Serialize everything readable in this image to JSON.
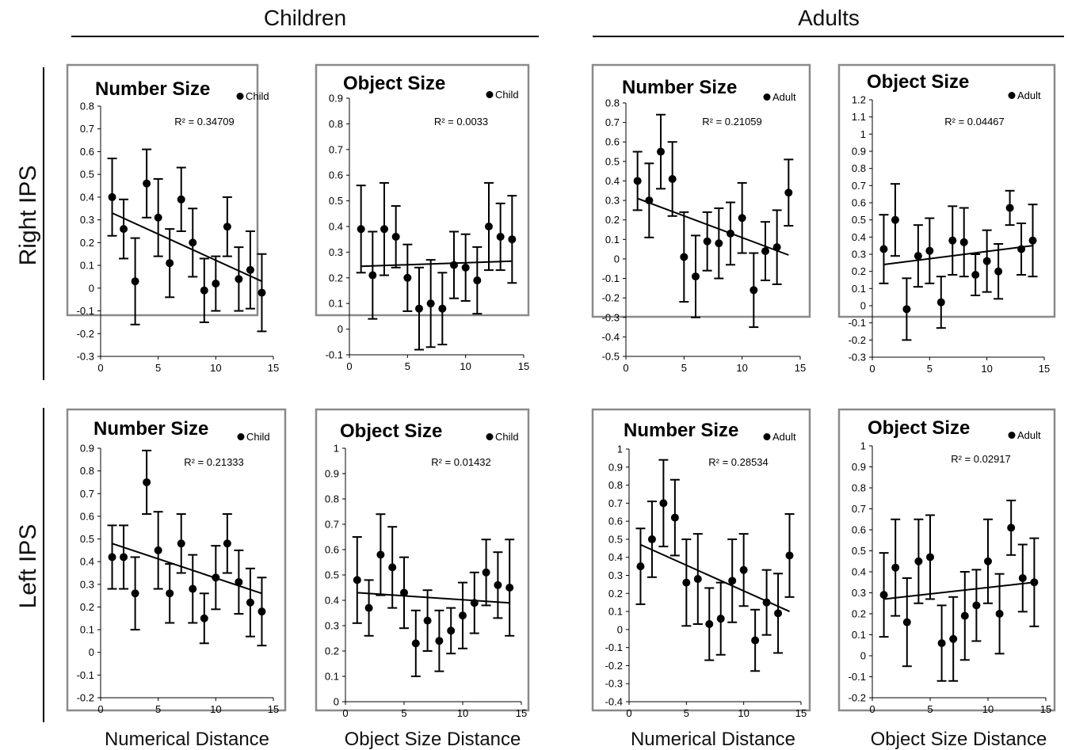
{
  "figure": {
    "groups": [
      "Children",
      "Adults"
    ],
    "rows": [
      "Right IPS",
      "Left IPS"
    ],
    "x_labels": [
      "Numerical Distance",
      "Object Size Distance",
      "Numerical Distance",
      "Object Size Distance"
    ]
  },
  "chart_data": [
    {
      "id": "rc-num",
      "type": "scatter",
      "title": "Number Size",
      "legend": "Child",
      "r2": "R² = 0.34709",
      "xlim": [
        0,
        15
      ],
      "xticks": [
        0,
        5,
        10,
        15
      ],
      "ylim": [
        -0.3,
        0.8
      ],
      "yticks": [
        -0.3,
        -0.2,
        -0.1,
        0,
        0.1,
        0.2,
        0.3,
        0.4,
        0.5,
        0.6,
        0.7,
        0.8
      ],
      "x": [
        1,
        2,
        3,
        4,
        5,
        6,
        7,
        8,
        9,
        10,
        11,
        12,
        13,
        14
      ],
      "y": [
        0.4,
        0.26,
        0.03,
        0.46,
        0.31,
        0.11,
        0.39,
        0.2,
        -0.01,
        0.02,
        0.27,
        0.04,
        0.08,
        -0.02
      ],
      "err": [
        0.17,
        0.13,
        0.19,
        0.15,
        0.17,
        0.15,
        0.14,
        0.15,
        0.14,
        0.12,
        0.13,
        0.14,
        0.17,
        0.17
      ],
      "trend": [
        0.33,
        0.03
      ]
    },
    {
      "id": "rc-obj",
      "type": "scatter",
      "title": "Object Size",
      "legend": "Child",
      "r2": "R² = 0.0033",
      "xlim": [
        0,
        15
      ],
      "xticks": [
        0,
        5,
        10,
        15
      ],
      "ylim": [
        -0.1,
        0.9
      ],
      "yticks": [
        -0.1,
        0,
        0.1,
        0.2,
        0.3,
        0.4,
        0.5,
        0.6,
        0.7,
        0.8,
        0.9
      ],
      "x": [
        1,
        2,
        3,
        4,
        5,
        6,
        7,
        8,
        9,
        10,
        11,
        12,
        13,
        14
      ],
      "y": [
        0.39,
        0.21,
        0.39,
        0.36,
        0.2,
        0.08,
        0.1,
        0.08,
        0.25,
        0.24,
        0.19,
        0.4,
        0.36,
        0.35
      ],
      "err": [
        0.17,
        0.17,
        0.18,
        0.12,
        0.13,
        0.16,
        0.17,
        0.14,
        0.13,
        0.13,
        0.13,
        0.17,
        0.13,
        0.17
      ],
      "trend": [
        0.245,
        0.265
      ]
    },
    {
      "id": "ra-num",
      "type": "scatter",
      "title": "Number Size",
      "legend": "Adult",
      "r2": "R² = 0.21059",
      "xlim": [
        0,
        15
      ],
      "xticks": [
        0,
        5,
        10,
        15
      ],
      "ylim": [
        -0.5,
        0.8
      ],
      "yticks": [
        -0.5,
        -0.4,
        -0.3,
        -0.2,
        -0.1,
        0,
        0.1,
        0.2,
        0.3,
        0.4,
        0.5,
        0.6,
        0.7,
        0.8
      ],
      "x": [
        1,
        2,
        3,
        4,
        5,
        6,
        7,
        8,
        9,
        10,
        11,
        12,
        13,
        14
      ],
      "y": [
        0.4,
        0.3,
        0.55,
        0.41,
        0.01,
        -0.09,
        0.09,
        0.08,
        0.13,
        0.21,
        -0.16,
        0.04,
        0.06,
        0.34
      ],
      "err": [
        0.15,
        0.19,
        0.19,
        0.19,
        0.23,
        0.21,
        0.15,
        0.18,
        0.16,
        0.18,
        0.19,
        0.15,
        0.19,
        0.17
      ],
      "trend": [
        0.31,
        0.02
      ]
    },
    {
      "id": "ra-obj",
      "type": "scatter",
      "title": "Object Size",
      "legend": "Adult",
      "r2": "R² = 0.04467",
      "xlim": [
        0,
        15
      ],
      "xticks": [
        0,
        5,
        10,
        15
      ],
      "ylim": [
        -0.3,
        1.2
      ],
      "yticks": [
        -0.3,
        -0.2,
        -0.1,
        0,
        0.1,
        0.2,
        0.3,
        0.4,
        0.5,
        0.6,
        0.7,
        0.8,
        0.9,
        1,
        1.1,
        1.2
      ],
      "x": [
        1,
        2,
        3,
        4,
        5,
        6,
        7,
        8,
        9,
        10,
        11,
        12,
        13,
        14
      ],
      "y": [
        0.33,
        0.5,
        -0.02,
        0.29,
        0.32,
        0.02,
        0.38,
        0.37,
        0.18,
        0.26,
        0.2,
        0.57,
        0.33,
        0.38
      ],
      "err": [
        0.2,
        0.21,
        0.18,
        0.18,
        0.19,
        0.15,
        0.2,
        0.2,
        0.12,
        0.18,
        0.16,
        0.1,
        0.15,
        0.21
      ],
      "trend": [
        0.24,
        0.35
      ]
    },
    {
      "id": "lc-num",
      "type": "scatter",
      "title": "Number Size",
      "legend": "Child",
      "r2": "R² = 0.21333",
      "xlim": [
        0,
        15
      ],
      "xticks": [
        0,
        5,
        10,
        15
      ],
      "ylim": [
        -0.2,
        0.9
      ],
      "yticks": [
        -0.2,
        -0.1,
        0,
        0.1,
        0.2,
        0.3,
        0.4,
        0.5,
        0.6,
        0.7,
        0.8,
        0.9
      ],
      "x": [
        1,
        2,
        3,
        4,
        5,
        6,
        7,
        8,
        9,
        10,
        11,
        12,
        13,
        14
      ],
      "y": [
        0.42,
        0.42,
        0.26,
        0.75,
        0.45,
        0.26,
        0.48,
        0.28,
        0.15,
        0.33,
        0.48,
        0.31,
        0.22,
        0.18
      ],
      "err": [
        0.14,
        0.14,
        0.16,
        0.14,
        0.17,
        0.13,
        0.13,
        0.15,
        0.11,
        0.14,
        0.13,
        0.14,
        0.15,
        0.15
      ],
      "trend": [
        0.48,
        0.26
      ]
    },
    {
      "id": "lc-obj",
      "type": "scatter",
      "title": "Object Size",
      "legend": "Child",
      "r2": "R² = 0.01432",
      "xlim": [
        0,
        15
      ],
      "xticks": [
        0,
        5,
        10,
        15
      ],
      "ylim": [
        0,
        1
      ],
      "yticks": [
        0,
        0.1,
        0.2,
        0.3,
        0.4,
        0.5,
        0.6,
        0.7,
        0.8,
        0.9,
        1
      ],
      "x": [
        1,
        2,
        3,
        4,
        5,
        6,
        7,
        8,
        9,
        10,
        11,
        12,
        13,
        14
      ],
      "y": [
        0.48,
        0.37,
        0.58,
        0.53,
        0.43,
        0.23,
        0.32,
        0.24,
        0.28,
        0.34,
        0.39,
        0.51,
        0.46,
        0.45
      ],
      "err": [
        0.17,
        0.11,
        0.16,
        0.16,
        0.14,
        0.13,
        0.12,
        0.12,
        0.09,
        0.13,
        0.12,
        0.13,
        0.13,
        0.19
      ],
      "trend": [
        0.43,
        0.39
      ]
    },
    {
      "id": "la-num",
      "type": "scatter",
      "title": "Number Size",
      "legend": "Adult",
      "r2": "R² = 0.28534",
      "xlim": [
        0,
        15
      ],
      "xticks": [
        0,
        5,
        10,
        15
      ],
      "ylim": [
        -0.4,
        1
      ],
      "yticks": [
        -0.4,
        -0.3,
        -0.2,
        -0.1,
        0,
        0.1,
        0.2,
        0.3,
        0.4,
        0.5,
        0.6,
        0.7,
        0.8,
        0.9,
        1
      ],
      "x": [
        1,
        2,
        3,
        4,
        5,
        6,
        7,
        8,
        9,
        10,
        11,
        12,
        13,
        14
      ],
      "y": [
        0.35,
        0.5,
        0.7,
        0.62,
        0.26,
        0.28,
        0.03,
        0.06,
        0.27,
        0.33,
        -0.06,
        0.15,
        0.09,
        0.41
      ],
      "err": [
        0.21,
        0.21,
        0.24,
        0.21,
        0.24,
        0.25,
        0.2,
        0.2,
        0.23,
        0.2,
        0.17,
        0.18,
        0.22,
        0.23
      ],
      "trend": [
        0.47,
        0.1
      ]
    },
    {
      "id": "la-obj",
      "type": "scatter",
      "title": "Object Size",
      "legend": "Adult",
      "r2": "R² = 0.02917",
      "xlim": [
        0,
        15
      ],
      "xticks": [
        0,
        5,
        10,
        15
      ],
      "ylim": [
        -0.2,
        1
      ],
      "yticks": [
        -0.2,
        -0.1,
        0,
        0.1,
        0.2,
        0.3,
        0.4,
        0.5,
        0.6,
        0.7,
        0.8,
        0.9,
        1
      ],
      "x": [
        1,
        2,
        3,
        4,
        5,
        6,
        7,
        8,
        9,
        10,
        11,
        12,
        13,
        14
      ],
      "y": [
        0.29,
        0.42,
        0.16,
        0.45,
        0.47,
        0.06,
        0.08,
        0.19,
        0.24,
        0.45,
        0.2,
        0.61,
        0.37,
        0.35
      ],
      "err": [
        0.2,
        0.23,
        0.21,
        0.2,
        0.2,
        0.18,
        0.2,
        0.21,
        0.17,
        0.2,
        0.19,
        0.13,
        0.16,
        0.21
      ],
      "trend": [
        0.27,
        0.35
      ]
    }
  ]
}
